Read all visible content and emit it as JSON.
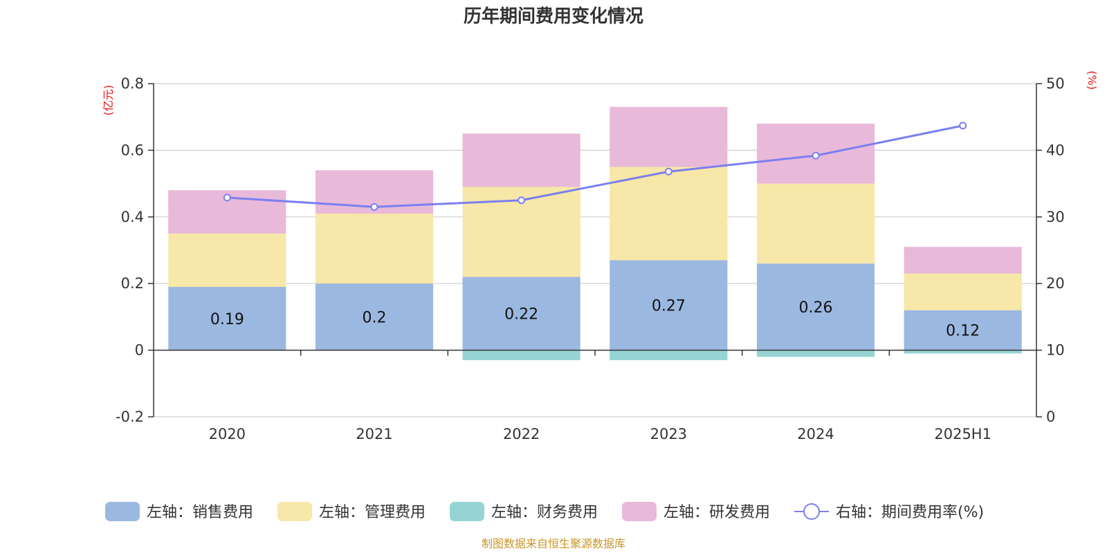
{
  "chart_data": {
    "type": "bar",
    "title": "历年期间费用变化情况",
    "left_unit": "(亿元)",
    "right_unit": "(%)",
    "categories": [
      "2020",
      "2021",
      "2022",
      "2023",
      "2024",
      "2025H1"
    ],
    "left_axis": {
      "ylim": [
        -0.2,
        0.8
      ],
      "ticks": [
        "-0.2",
        "0",
        "0.2",
        "0.4",
        "0.6",
        "0.8"
      ]
    },
    "right_axis": {
      "ylim": [
        0,
        50
      ],
      "ticks": [
        "0",
        "10",
        "20",
        "30",
        "40",
        "50"
      ]
    },
    "grid": true,
    "legend_position": "bottom",
    "series": [
      {
        "name": "左轴：销售费用",
        "type": "bar",
        "axis": "left",
        "color": "#9bb8e1",
        "values": [
          0.19,
          0.2,
          0.22,
          0.27,
          0.26,
          0.12
        ],
        "labels": [
          "0.19",
          "0.2",
          "0.22",
          "0.27",
          "0.26",
          "0.12"
        ]
      },
      {
        "name": "左轴：管理费用",
        "type": "bar",
        "axis": "left",
        "color": "#f7e7a8",
        "values": [
          0.16,
          0.21,
          0.27,
          0.28,
          0.24,
          0.11
        ]
      },
      {
        "name": "左轴：财务费用",
        "type": "bar",
        "axis": "left",
        "color": "#96d4d4",
        "values": [
          0.0,
          0.0,
          -0.03,
          -0.03,
          -0.02,
          -0.01
        ]
      },
      {
        "name": "左轴：研发费用",
        "type": "bar",
        "axis": "left",
        "color": "#e8b9d9",
        "values": [
          0.13,
          0.13,
          0.16,
          0.18,
          0.18,
          0.08
        ]
      },
      {
        "name": "右轴：期间费用率(%)",
        "type": "line",
        "axis": "right",
        "color": "#7b7ff0",
        "values": [
          32.9,
          31.5,
          32.5,
          36.8,
          39.2,
          43.7
        ]
      }
    ]
  },
  "source_note": "制图数据来自恒生聚源数据库"
}
